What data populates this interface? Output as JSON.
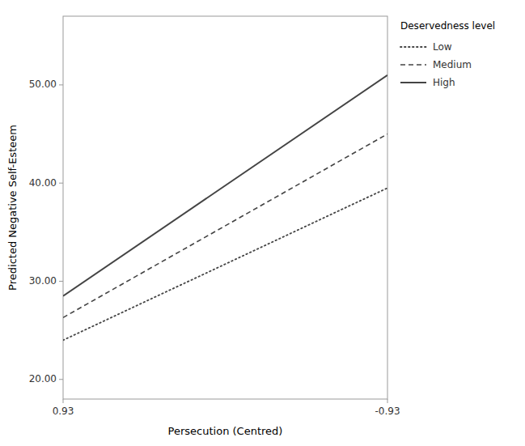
{
  "chart_data": {
    "type": "line",
    "x": [
      0.93,
      -0.93
    ],
    "series": [
      {
        "name": "Low",
        "color": "#444444",
        "line_style": "dotted",
        "values": [
          24.0,
          39.5
        ]
      },
      {
        "name": "Medium",
        "color": "#444444",
        "line_style": "dashed",
        "values": [
          26.3,
          45.0
        ]
      },
      {
        "name": "High",
        "color": "#444444",
        "line_style": "solid",
        "values": [
          28.5,
          51.0
        ]
      }
    ],
    "x_label": "Persecution (Centred)",
    "y_label": "Predicted Negative Self-Esteem",
    "xlim": [
      0.93,
      -0.93
    ],
    "xticks": [
      0.93,
      -0.93
    ],
    "ylim": [
      18.0,
      57.0
    ],
    "yticks": [
      {
        "value": 20.0,
        "label": "20.00"
      },
      {
        "value": 30.0,
        "label": "30.00"
      },
      {
        "value": 40.0,
        "label": "40.00"
      },
      {
        "value": 50.0,
        "label": "50.00"
      }
    ],
    "legend_title": "Deservedness level",
    "legend": "right",
    "grid": false
  }
}
